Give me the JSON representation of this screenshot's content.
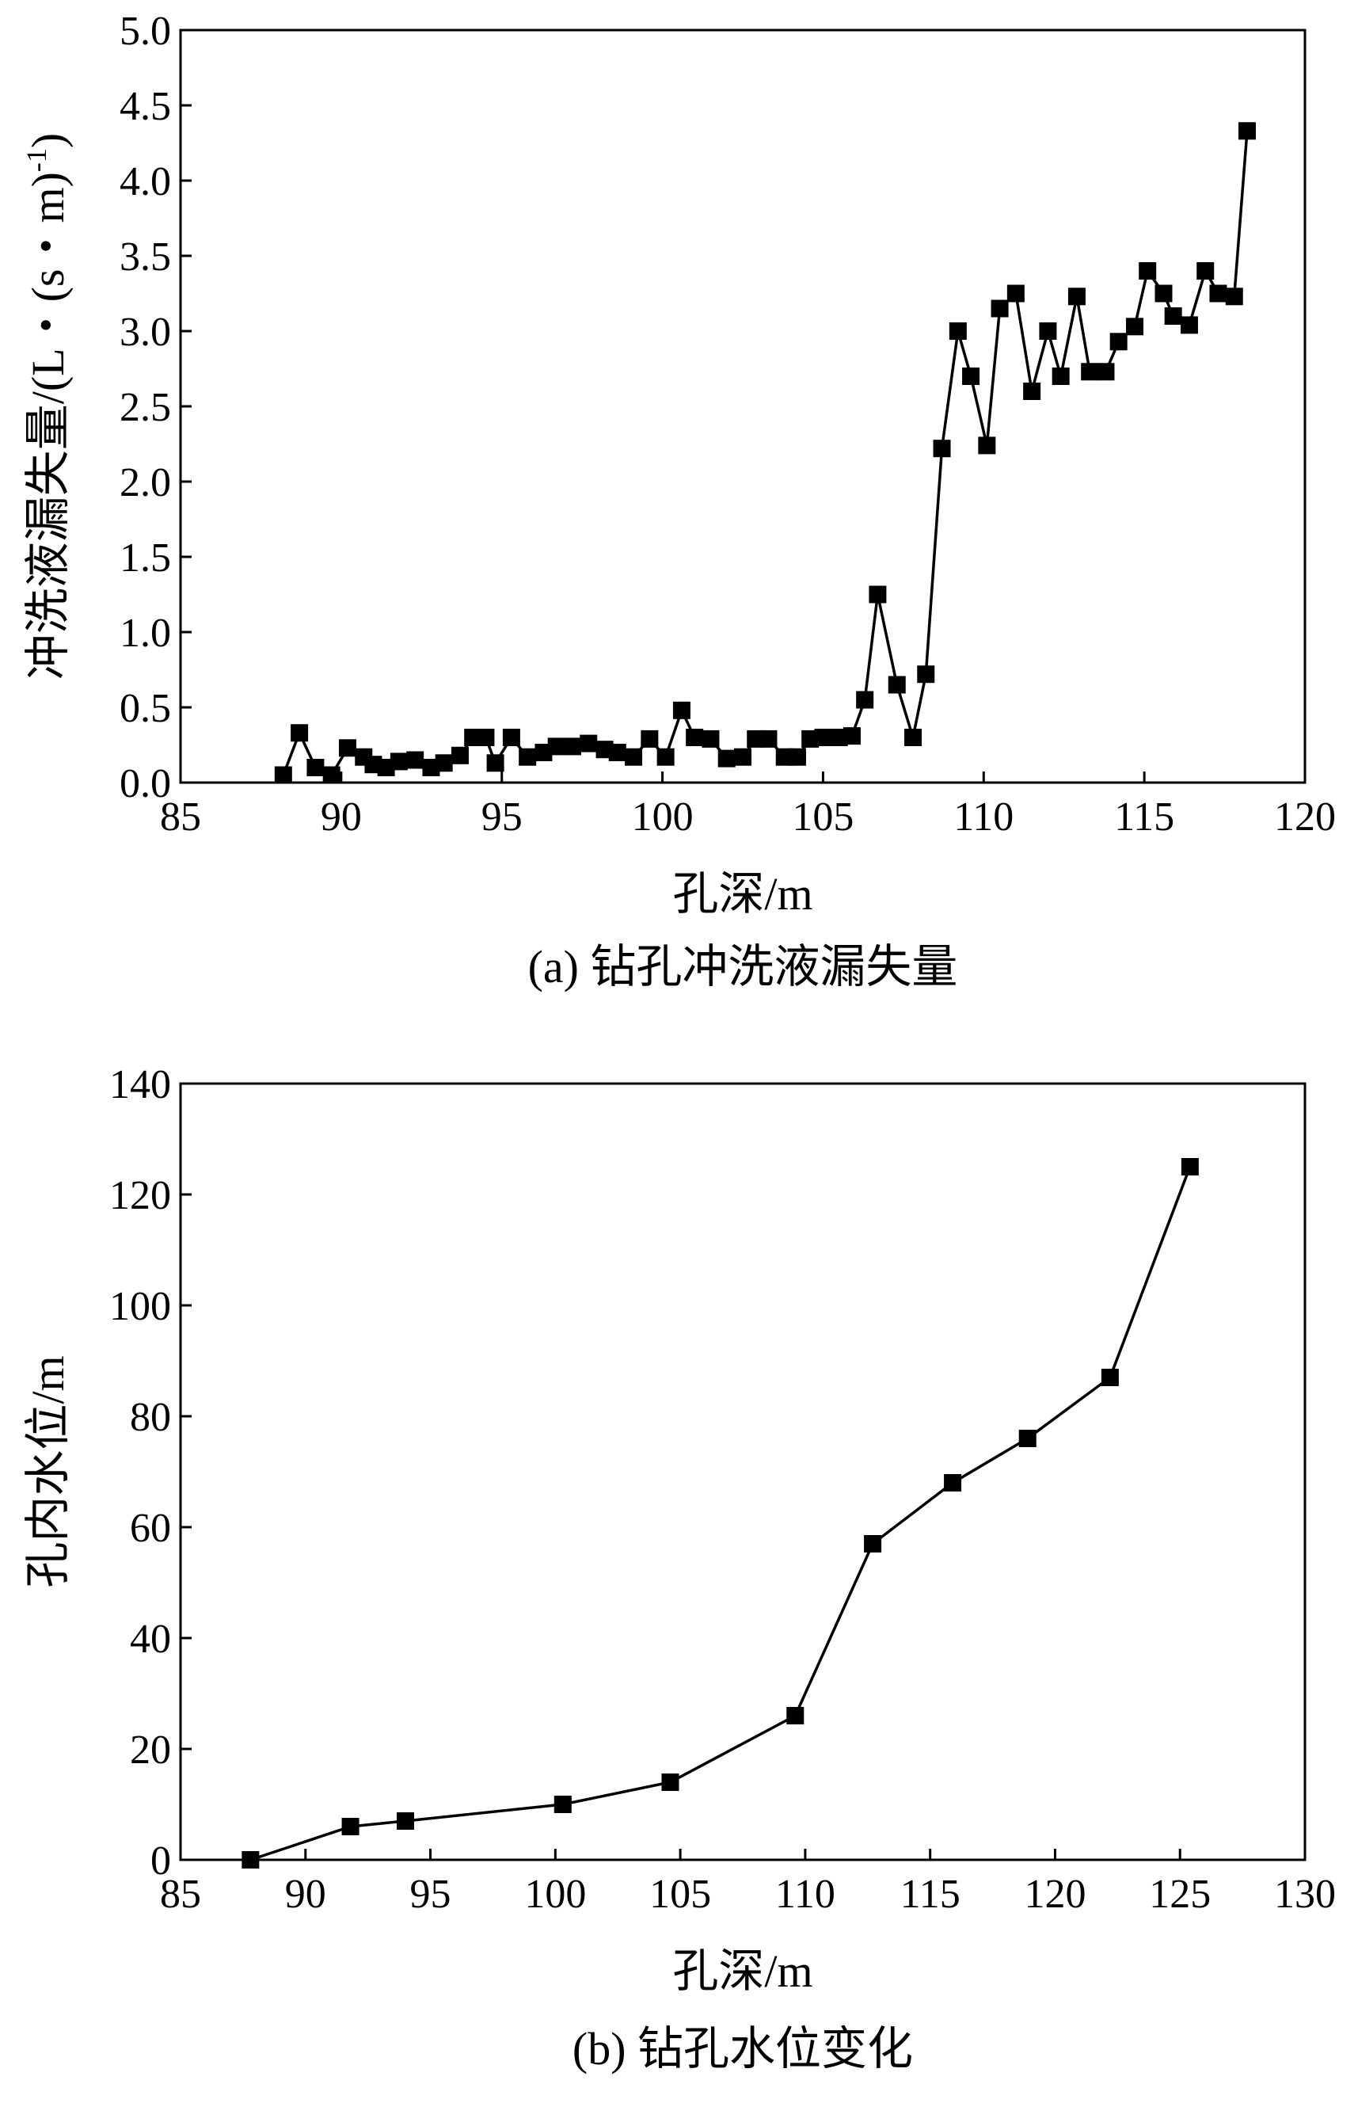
{
  "chart_data": [
    {
      "type": "line",
      "caption": "(a) 钻孔冲洗液漏失量",
      "xlabel": "孔深/m",
      "ylabel": "冲洗液漏失量/(L・(s・m)",
      "ylabel_sup": "-1",
      "ylabel_close": ")",
      "xlim": [
        85,
        120
      ],
      "ylim": [
        0,
        5.0
      ],
      "xticks": [
        85,
        90,
        95,
        100,
        105,
        110,
        115,
        120
      ],
      "yticks": [
        "0.0",
        "0.5",
        "1.0",
        "1.5",
        "2.0",
        "2.5",
        "3.0",
        "3.5",
        "4.0",
        "4.5",
        "5.0"
      ],
      "grid": false,
      "marker": "square",
      "x": [
        88.2,
        88.7,
        89.2,
        89.7,
        90.2,
        90.7,
        91.0,
        91.4,
        91.8,
        92.3,
        92.8,
        93.2,
        93.7,
        94.1,
        94.5,
        94.8,
        95.3,
        95.8,
        96.3,
        96.7,
        97.2,
        97.7,
        98.2,
        98.6,
        99.1,
        99.6,
        100.1,
        100.6,
        101.0,
        101.5,
        102.0,
        102.5,
        102.9,
        103.3,
        103.8,
        104.2,
        104.6,
        105.0,
        105.5,
        105.9,
        106.3,
        106.7,
        107.3,
        107.8,
        108.2,
        108.7,
        109.2,
        109.6,
        110.1,
        110.5,
        111.0,
        111.5,
        112.0,
        112.4,
        112.9,
        113.3,
        113.8,
        114.2,
        114.7,
        115.1,
        115.6,
        115.9,
        116.4,
        116.9,
        117.3,
        117.8,
        118.2
      ],
      "y": [
        0.05,
        0.33,
        0.1,
        0.05,
        0.23,
        0.17,
        0.12,
        0.1,
        0.14,
        0.15,
        0.1,
        0.13,
        0.18,
        0.3,
        0.3,
        0.13,
        0.3,
        0.17,
        0.2,
        0.24,
        0.24,
        0.26,
        0.22,
        0.2,
        0.17,
        0.29,
        0.17,
        0.48,
        0.3,
        0.29,
        0.16,
        0.17,
        0.29,
        0.29,
        0.17,
        0.17,
        0.29,
        0.3,
        0.3,
        0.31,
        0.55,
        1.25,
        0.65,
        0.3,
        0.72,
        2.22,
        3.0,
        2.7,
        2.24,
        3.15,
        3.25,
        2.6,
        3.0,
        2.7,
        3.23,
        2.73,
        2.73,
        2.93,
        3.03,
        3.4,
        3.25,
        3.1,
        3.04,
        3.4,
        3.25,
        3.23,
        4.33
      ]
    },
    {
      "type": "line",
      "caption": "(b) 钻孔水位变化",
      "xlabel": "孔深/m",
      "ylabel": "孔内水位/m",
      "xlim": [
        85,
        130
      ],
      "ylim": [
        0,
        140
      ],
      "xticks": [
        85,
        90,
        95,
        100,
        105,
        110,
        115,
        120,
        125,
        130
      ],
      "yticks": [
        0,
        20,
        40,
        60,
        80,
        100,
        120,
        140
      ],
      "grid": false,
      "marker": "square",
      "x": [
        87.8,
        91.8,
        94.0,
        100.3,
        104.6,
        109.6,
        112.7,
        115.9,
        118.9,
        122.2,
        125.4
      ],
      "y": [
        0,
        6,
        7,
        10,
        14,
        26,
        57,
        68,
        76,
        87,
        125
      ]
    }
  ]
}
